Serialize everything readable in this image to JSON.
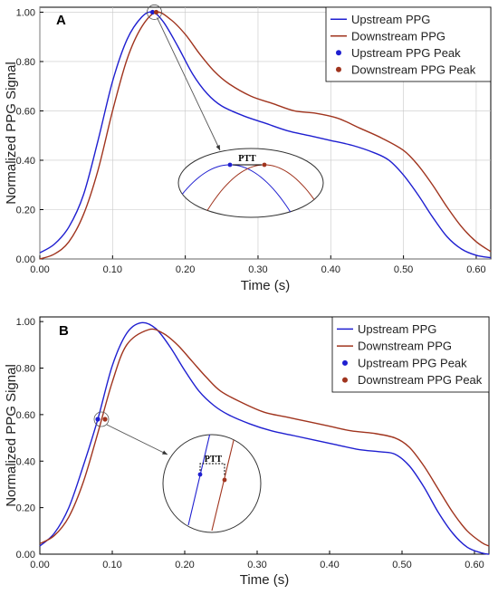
{
  "chart_data": [
    {
      "type": "line",
      "panel_label": "A",
      "xlabel": "Time (s)",
      "ylabel": "Normalized PPG Signal",
      "xlim": [
        0,
        0.62
      ],
      "ylim": [
        0,
        1.02
      ],
      "xticks": [
        "0.00",
        "0.10",
        "0.20",
        "0.30",
        "0.40",
        "0.50",
        "0.60"
      ],
      "yticks": [
        "0.00",
        "0.20",
        "0.40",
        "0.60",
        "0.80",
        "1.00"
      ],
      "grid": true,
      "legend_position": "top-right",
      "series": [
        {
          "name": "Upstream PPG",
          "color": "#1f1fd0",
          "x": [
            0,
            0.02,
            0.04,
            0.06,
            0.08,
            0.1,
            0.12,
            0.14,
            0.155,
            0.17,
            0.19,
            0.21,
            0.23,
            0.25,
            0.28,
            0.31,
            0.34,
            0.37,
            0.4,
            0.43,
            0.46,
            0.48,
            0.5,
            0.52,
            0.54,
            0.56,
            0.58,
            0.6,
            0.62
          ],
          "y": [
            0.025,
            0.06,
            0.13,
            0.26,
            0.48,
            0.72,
            0.89,
            0.98,
            1.0,
            0.96,
            0.86,
            0.75,
            0.67,
            0.62,
            0.58,
            0.55,
            0.52,
            0.5,
            0.48,
            0.46,
            0.43,
            0.4,
            0.34,
            0.26,
            0.17,
            0.09,
            0.04,
            0.015,
            0.005
          ]
        },
        {
          "name": "Downstream PPG",
          "color": "#a0341e",
          "x": [
            0,
            0.02,
            0.04,
            0.06,
            0.08,
            0.1,
            0.12,
            0.14,
            0.16,
            0.18,
            0.2,
            0.22,
            0.24,
            0.26,
            0.29,
            0.32,
            0.35,
            0.38,
            0.41,
            0.44,
            0.47,
            0.5,
            0.52,
            0.54,
            0.56,
            0.58,
            0.6,
            0.62
          ],
          "y": [
            0.0,
            0.02,
            0.07,
            0.18,
            0.36,
            0.6,
            0.81,
            0.94,
            1.0,
            0.97,
            0.91,
            0.83,
            0.76,
            0.71,
            0.66,
            0.63,
            0.6,
            0.59,
            0.57,
            0.53,
            0.49,
            0.44,
            0.38,
            0.3,
            0.21,
            0.13,
            0.07,
            0.03
          ]
        }
      ],
      "peaks": [
        {
          "name": "Upstream PPG Peak",
          "color": "#1f1fd0",
          "x": 0.155,
          "y": 1.0
        },
        {
          "name": "Downstream PPG Peak",
          "color": "#a0341e",
          "x": 0.16,
          "y": 1.0
        }
      ],
      "inset_label": "PTT"
    },
    {
      "type": "line",
      "panel_label": "B",
      "xlabel": "Time (s)",
      "ylabel": "Normalized PPG Signal",
      "xlim": [
        0,
        0.62
      ],
      "ylim": [
        0,
        1.02
      ],
      "xticks": [
        "0.00",
        "0.10",
        "0.20",
        "0.30",
        "0.40",
        "0.50",
        "0.60"
      ],
      "yticks": [
        "0.00",
        "0.20",
        "0.40",
        "0.60",
        "0.80",
        "1.00"
      ],
      "grid": false,
      "legend_position": "top-right",
      "series": [
        {
          "name": "Upstream PPG",
          "color": "#1f1fd0",
          "x": [
            0,
            0.02,
            0.04,
            0.06,
            0.08,
            0.1,
            0.12,
            0.14,
            0.16,
            0.18,
            0.2,
            0.22,
            0.24,
            0.26,
            0.29,
            0.32,
            0.35,
            0.38,
            0.41,
            0.44,
            0.47,
            0.49,
            0.51,
            0.53,
            0.55,
            0.57,
            0.59,
            0.61,
            0.62
          ],
          "y": [
            0.035,
            0.09,
            0.2,
            0.38,
            0.58,
            0.81,
            0.95,
            0.995,
            0.97,
            0.89,
            0.79,
            0.7,
            0.64,
            0.6,
            0.56,
            0.53,
            0.51,
            0.49,
            0.47,
            0.45,
            0.44,
            0.43,
            0.38,
            0.29,
            0.18,
            0.09,
            0.03,
            0.005,
            0.0
          ]
        },
        {
          "name": "Downstream PPG",
          "color": "#a0341e",
          "x": [
            0,
            0.02,
            0.04,
            0.06,
            0.08,
            0.1,
            0.12,
            0.15,
            0.17,
            0.19,
            0.21,
            0.23,
            0.25,
            0.28,
            0.31,
            0.34,
            0.37,
            0.4,
            0.43,
            0.46,
            0.49,
            0.51,
            0.53,
            0.55,
            0.57,
            0.59,
            0.61,
            0.62
          ],
          "y": [
            0.045,
            0.08,
            0.16,
            0.31,
            0.52,
            0.74,
            0.9,
            0.965,
            0.95,
            0.9,
            0.83,
            0.76,
            0.7,
            0.65,
            0.61,
            0.59,
            0.57,
            0.55,
            0.53,
            0.52,
            0.5,
            0.46,
            0.38,
            0.28,
            0.18,
            0.1,
            0.05,
            0.035
          ]
        }
      ],
      "peaks": [
        {
          "name": "Upstream PPG Peak",
          "color": "#1f1fd0",
          "x": 0.08,
          "y": 0.58
        },
        {
          "name": "Downstream PPG Peak",
          "color": "#a0341e",
          "x": 0.09,
          "y": 0.58
        }
      ],
      "inset_label": "PTT"
    }
  ]
}
